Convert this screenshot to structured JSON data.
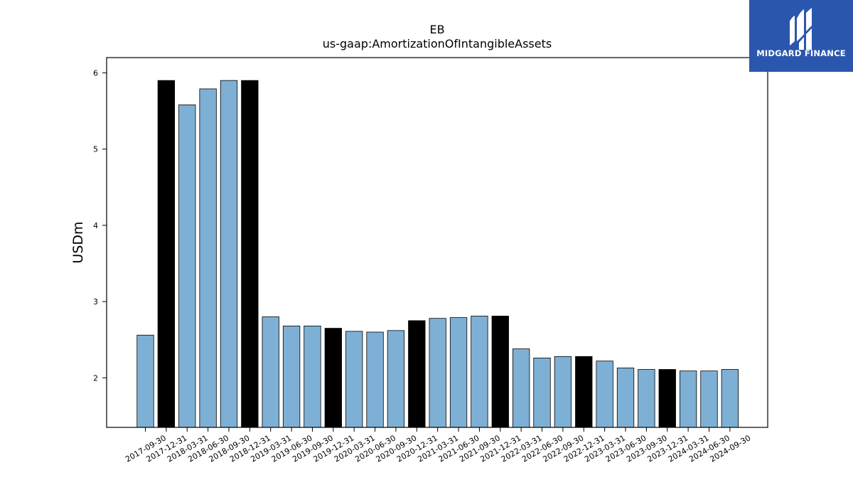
{
  "logo": {
    "text": "MIDGARD FINANCE",
    "icon": "midgard-logo-icon",
    "background": "#2a57ad"
  },
  "chart_data": {
    "type": "bar",
    "title": "EB",
    "subtitle": "us-gaap:AmortizationOfIntangibleAssets",
    "xlabel": "",
    "ylabel": "USDm",
    "ylim": [
      1.35,
      6.2
    ],
    "yticks": [
      2,
      3,
      4,
      5,
      6
    ],
    "grid": false,
    "colors": {
      "quarter": "#7eb0d5",
      "year_end": "#000000",
      "edge": "#000000"
    },
    "categories": [
      "2017-09-30",
      "2017-12-31",
      "2018-03-31",
      "2018-06-30",
      "2018-09-30",
      "2018-12-31",
      "2019-03-31",
      "2019-06-30",
      "2019-09-30",
      "2019-12-31",
      "2020-03-31",
      "2020-06-30",
      "2020-09-30",
      "2020-12-31",
      "2021-03-31",
      "2021-06-30",
      "2021-09-30",
      "2021-12-31",
      "2022-03-31",
      "2022-06-30",
      "2022-09-30",
      "2022-12-31",
      "2023-03-31",
      "2023-06-30",
      "2023-09-30",
      "2023-12-31",
      "2024-03-31",
      "2024-06-30",
      "2024-09-30"
    ],
    "values": [
      2.56,
      5.9,
      5.58,
      5.79,
      5.9,
      5.9,
      2.8,
      2.68,
      2.68,
      2.65,
      2.61,
      2.6,
      2.62,
      2.75,
      2.78,
      2.79,
      2.81,
      2.81,
      2.38,
      2.26,
      2.28,
      2.28,
      2.22,
      2.13,
      2.11,
      2.11,
      2.09,
      2.09,
      2.11
    ],
    "year_end": [
      false,
      true,
      false,
      false,
      false,
      true,
      false,
      false,
      false,
      true,
      false,
      false,
      false,
      true,
      false,
      false,
      false,
      true,
      false,
      false,
      false,
      true,
      false,
      false,
      false,
      true,
      false,
      false,
      false
    ]
  }
}
